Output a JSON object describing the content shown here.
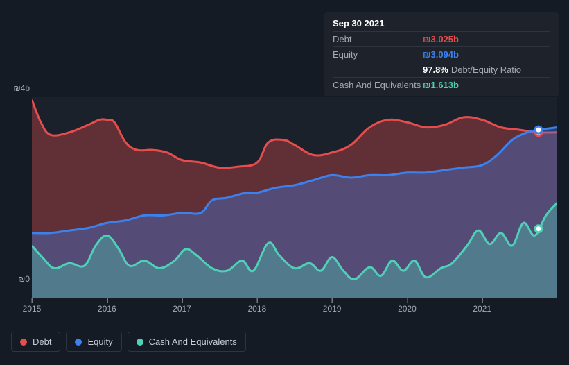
{
  "tooltip": {
    "date": "Sep 30 2021",
    "rows": [
      {
        "label": "Debt",
        "value": "₪3.025b",
        "color": "#e84d4d"
      },
      {
        "label": "Equity",
        "value": "₪3.094b",
        "color": "#3b82f0"
      },
      {
        "label": "",
        "value": "97.8%",
        "suffix": "Debt/Equity Ratio",
        "color": "#ffffff"
      },
      {
        "label": "Cash And Equivalents",
        "value": "₪1.613b",
        "color": "#4fd1b8"
      }
    ]
  },
  "chart": {
    "type": "area",
    "background_color": "#1a212b",
    "page_background": "#151b24",
    "y_axis": {
      "min": 0,
      "max": 4,
      "ticks": [
        {
          "value": 0,
          "label": "₪0"
        },
        {
          "value": 4,
          "label": "₪4b"
        }
      ],
      "label_color": "#a3aab5",
      "label_fontsize": 12
    },
    "x_axis": {
      "min": 0,
      "max": 7,
      "ticks": [
        {
          "value": 0.0,
          "label": "2015"
        },
        {
          "value": 1.0,
          "label": "2016"
        },
        {
          "value": 2.0,
          "label": "2017"
        },
        {
          "value": 3.0,
          "label": "2018"
        },
        {
          "value": 4.0,
          "label": "2019"
        },
        {
          "value": 5.0,
          "label": "2020"
        },
        {
          "value": 6.0,
          "label": "2021"
        }
      ],
      "label_color": "#a3aab5",
      "label_fontsize": 12
    },
    "highlight_x": 6.75,
    "series": [
      {
        "name": "Debt",
        "color": "#e84d4d",
        "fill_color": "#e84d4d",
        "line_width": 3,
        "points": [
          [
            0.0,
            3.95
          ],
          [
            0.12,
            3.5
          ],
          [
            0.25,
            3.25
          ],
          [
            0.5,
            3.3
          ],
          [
            0.75,
            3.45
          ],
          [
            0.9,
            3.55
          ],
          [
            1.0,
            3.55
          ],
          [
            1.1,
            3.5
          ],
          [
            1.25,
            3.1
          ],
          [
            1.4,
            2.95
          ],
          [
            1.6,
            2.95
          ],
          [
            1.8,
            2.9
          ],
          [
            2.0,
            2.75
          ],
          [
            2.25,
            2.7
          ],
          [
            2.5,
            2.6
          ],
          [
            2.75,
            2.62
          ],
          [
            3.0,
            2.7
          ],
          [
            3.15,
            3.1
          ],
          [
            3.35,
            3.15
          ],
          [
            3.5,
            3.05
          ],
          [
            3.75,
            2.85
          ],
          [
            4.0,
            2.9
          ],
          [
            4.25,
            3.05
          ],
          [
            4.5,
            3.4
          ],
          [
            4.75,
            3.55
          ],
          [
            5.0,
            3.5
          ],
          [
            5.25,
            3.4
          ],
          [
            5.5,
            3.45
          ],
          [
            5.75,
            3.6
          ],
          [
            6.0,
            3.55
          ],
          [
            6.25,
            3.4
          ],
          [
            6.5,
            3.35
          ],
          [
            6.75,
            3.3
          ],
          [
            7.0,
            3.3
          ]
        ]
      },
      {
        "name": "Equity",
        "color": "#3b82f0",
        "fill_color": "#3b82f0",
        "line_width": 3,
        "points": [
          [
            0.0,
            1.3
          ],
          [
            0.25,
            1.3
          ],
          [
            0.5,
            1.35
          ],
          [
            0.75,
            1.4
          ],
          [
            1.0,
            1.5
          ],
          [
            1.25,
            1.55
          ],
          [
            1.5,
            1.65
          ],
          [
            1.75,
            1.65
          ],
          [
            2.0,
            1.7
          ],
          [
            2.25,
            1.7
          ],
          [
            2.4,
            1.95
          ],
          [
            2.6,
            2.0
          ],
          [
            2.85,
            2.1
          ],
          [
            3.0,
            2.1
          ],
          [
            3.25,
            2.2
          ],
          [
            3.5,
            2.25
          ],
          [
            3.75,
            2.35
          ],
          [
            4.0,
            2.45
          ],
          [
            4.25,
            2.4
          ],
          [
            4.5,
            2.45
          ],
          [
            4.75,
            2.45
          ],
          [
            5.0,
            2.5
          ],
          [
            5.25,
            2.5
          ],
          [
            5.5,
            2.55
          ],
          [
            5.75,
            2.6
          ],
          [
            6.0,
            2.65
          ],
          [
            6.2,
            2.85
          ],
          [
            6.4,
            3.15
          ],
          [
            6.6,
            3.3
          ],
          [
            6.75,
            3.35
          ],
          [
            7.0,
            3.4
          ]
        ]
      },
      {
        "name": "Cash And Equivalents",
        "color": "#4fd1b8",
        "fill_color": "#4fd1b8",
        "line_width": 3,
        "points": [
          [
            0.0,
            1.05
          ],
          [
            0.15,
            0.8
          ],
          [
            0.3,
            0.6
          ],
          [
            0.5,
            0.7
          ],
          [
            0.7,
            0.65
          ],
          [
            0.85,
            1.05
          ],
          [
            1.0,
            1.25
          ],
          [
            1.15,
            1.0
          ],
          [
            1.3,
            0.65
          ],
          [
            1.5,
            0.75
          ],
          [
            1.7,
            0.6
          ],
          [
            1.9,
            0.75
          ],
          [
            2.05,
            0.98
          ],
          [
            2.2,
            0.85
          ],
          [
            2.4,
            0.6
          ],
          [
            2.6,
            0.55
          ],
          [
            2.8,
            0.75
          ],
          [
            2.95,
            0.55
          ],
          [
            3.15,
            1.1
          ],
          [
            3.3,
            0.85
          ],
          [
            3.5,
            0.6
          ],
          [
            3.7,
            0.7
          ],
          [
            3.85,
            0.55
          ],
          [
            4.0,
            0.82
          ],
          [
            4.15,
            0.55
          ],
          [
            4.3,
            0.38
          ],
          [
            4.5,
            0.62
          ],
          [
            4.65,
            0.45
          ],
          [
            4.8,
            0.75
          ],
          [
            4.95,
            0.55
          ],
          [
            5.1,
            0.75
          ],
          [
            5.25,
            0.42
          ],
          [
            5.45,
            0.6
          ],
          [
            5.6,
            0.7
          ],
          [
            5.8,
            1.05
          ],
          [
            5.95,
            1.35
          ],
          [
            6.1,
            1.08
          ],
          [
            6.25,
            1.3
          ],
          [
            6.4,
            1.05
          ],
          [
            6.55,
            1.5
          ],
          [
            6.7,
            1.25
          ],
          [
            6.85,
            1.65
          ],
          [
            7.0,
            1.9
          ]
        ]
      }
    ]
  },
  "legend": [
    {
      "label": "Debt",
      "color": "#e84d4d"
    },
    {
      "label": "Equity",
      "color": "#3b82f0"
    },
    {
      "label": "Cash And Equivalents",
      "color": "#4fd1b8"
    }
  ]
}
